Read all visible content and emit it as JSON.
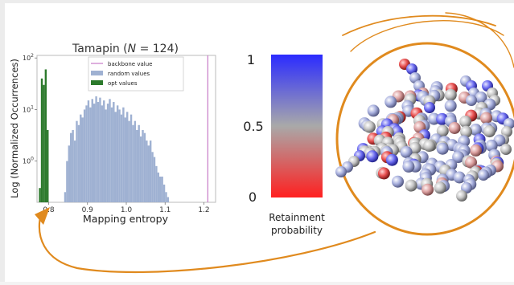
{
  "figure": {
    "colors": {
      "arrow": "#e08a1e",
      "bar_random": "#9fb1d2",
      "bar_opt": "#2c7a2c",
      "backbone_line": "#c77ac7",
      "colorbar_top": "#2b2bff",
      "colorbar_mid": "#a9a9a9",
      "colorbar_bottom": "#ff2020"
    },
    "colorbar": {
      "tick_high": "1",
      "tick_mid": "0.5",
      "tick_low": "0",
      "label_line1": "Retainment",
      "label_line2": "probability"
    },
    "molecule": {
      "icon": "protein-bead-model-icon"
    }
  },
  "chart_data": {
    "type": "bar",
    "title_prefix": "Tamapin (",
    "title_var": "N",
    "title_suffix": " = 124)",
    "xlabel": "Mapping entropy",
    "ylabel": "Log (Normalized Occurrences)",
    "xlim": [
      0.77,
      1.23
    ],
    "ylim_log10": [
      -0.8,
      2.05
    ],
    "y_scale": "log",
    "x_ticks": [
      0.8,
      0.9,
      1.0,
      1.1,
      1.2
    ],
    "x_tick_labels": [
      "0.8",
      "0.9",
      "1.0",
      "1.1",
      "1.2"
    ],
    "y_ticks_exp": [
      0,
      1,
      2
    ],
    "y_tick_base": "10",
    "legend": {
      "position": "top-right",
      "entries": [
        "backbone value",
        "random values",
        "opt values"
      ]
    },
    "backbone_value": 1.21,
    "bin_width": 0.005,
    "series": [
      {
        "name": "random values",
        "bins": [
          [
            0.84,
            0.25
          ],
          [
            0.845,
            1.0
          ],
          [
            0.85,
            2.0
          ],
          [
            0.855,
            3.5
          ],
          [
            0.86,
            4.0
          ],
          [
            0.865,
            2.5
          ],
          [
            0.87,
            6.0
          ],
          [
            0.875,
            5.0
          ],
          [
            0.88,
            8.0
          ],
          [
            0.885,
            7.0
          ],
          [
            0.89,
            10.0
          ],
          [
            0.895,
            12.0
          ],
          [
            0.9,
            15.0
          ],
          [
            0.905,
            11.0
          ],
          [
            0.91,
            16.0
          ],
          [
            0.915,
            13.0
          ],
          [
            0.92,
            18.0
          ],
          [
            0.925,
            14.0
          ],
          [
            0.93,
            17.0
          ],
          [
            0.935,
            12.0
          ],
          [
            0.94,
            15.0
          ],
          [
            0.945,
            10.0
          ],
          [
            0.95,
            13.0
          ],
          [
            0.955,
            16.0
          ],
          [
            0.96,
            11.0
          ],
          [
            0.965,
            14.0
          ],
          [
            0.97,
            9.0
          ],
          [
            0.975,
            12.0
          ],
          [
            0.98,
            10.0
          ],
          [
            0.985,
            8.0
          ],
          [
            0.99,
            11.0
          ],
          [
            0.995,
            7.0
          ],
          [
            1.0,
            9.0
          ],
          [
            1.005,
            6.0
          ],
          [
            1.01,
            8.0
          ],
          [
            1.015,
            5.0
          ],
          [
            1.02,
            6.0
          ],
          [
            1.025,
            4.0
          ],
          [
            1.03,
            5.0
          ],
          [
            1.035,
            3.0
          ],
          [
            1.04,
            4.0
          ],
          [
            1.045,
            3.5
          ],
          [
            1.05,
            2.5
          ],
          [
            1.055,
            2.0
          ],
          [
            1.06,
            2.5
          ],
          [
            1.065,
            1.5
          ],
          [
            1.07,
            1.2
          ],
          [
            1.075,
            0.8
          ],
          [
            1.08,
            0.6
          ],
          [
            1.085,
            0.5
          ],
          [
            1.09,
            0.5
          ],
          [
            1.095,
            0.35
          ],
          [
            1.1,
            0.25
          ],
          [
            1.105,
            0.2
          ]
        ]
      },
      {
        "name": "opt values",
        "bins": [
          [
            0.775,
            0.3
          ],
          [
            0.78,
            40.0
          ],
          [
            0.785,
            30.0
          ],
          [
            0.79,
            60.0
          ],
          [
            0.795,
            4.0
          ]
        ]
      }
    ]
  }
}
